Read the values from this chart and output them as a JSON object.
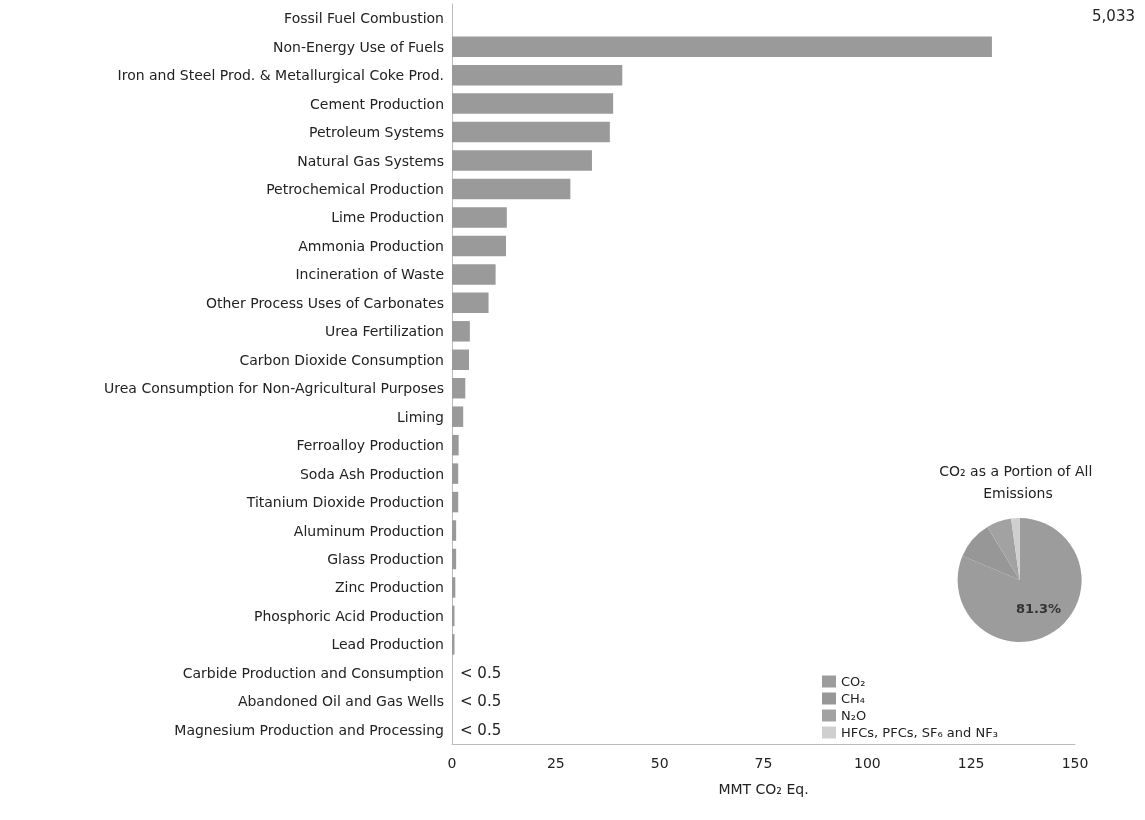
{
  "chart_data": [
    {
      "type": "bar",
      "orientation": "horizontal",
      "xlabel": "MMT CO₂ Eq.",
      "categories": [
        "Fossil Fuel Combustion",
        "Non-Energy Use of Fuels",
        "Iron and Steel Prod. & Metallurgical Coke Prod.",
        "Cement Production",
        "Petroleum Systems",
        "Natural Gas Systems",
        "Petrochemical Production",
        "Lime Production",
        "Ammonia Production",
        "Incineration of Waste",
        "Other Process Uses of Carbonates",
        "Urea Fertilization",
        "Carbon Dioxide Consumption",
        "Urea Consumption for Non-Agricultural Purposes",
        "Liming",
        "Ferroalloy Production",
        "Soda Ash Production",
        "Titanium Dioxide Production",
        "Aluminum Production",
        "Glass Production",
        "Zinc Production",
        "Phosphoric Acid Production",
        "Lead Production",
        "Carbide Production and Consumption",
        "Abandoned Oil and Gas Wells",
        "Magnesium Production and Processing"
      ],
      "annotations": [
        "5,033"
      ],
      "values": [
        null,
        130,
        41,
        38.8,
        38,
        33.7,
        28.5,
        13.2,
        13,
        10.5,
        8.8,
        4.3,
        4.1,
        3.2,
        2.7,
        1.6,
        1.5,
        1.5,
        1,
        1,
        0.8,
        0.6,
        0.6,
        null,
        null,
        null
      ],
      "value_labels": [
        null,
        null,
        null,
        null,
        null,
        null,
        null,
        null,
        null,
        null,
        null,
        null,
        null,
        null,
        null,
        null,
        null,
        null,
        null,
        null,
        null,
        null,
        null,
        "< 0.5",
        "< 0.5",
        "< 0.5"
      ],
      "color": "#9a9a9a",
      "xlim": [
        0,
        150
      ],
      "xticks": [
        0,
        25,
        50,
        75,
        100,
        125,
        150
      ],
      "grid": false,
      "legend": false
    },
    {
      "type": "pie",
      "title": "CO₂ as a Portion of All Emissions",
      "categories": [
        "CO₂",
        "CH₄",
        "N₂O",
        "HFCs, PFCs, SF₆ and NF₃"
      ],
      "values": [
        81.3,
        10,
        6.5,
        2.2
      ],
      "colors": [
        "#9c9c9c",
        "#979797",
        "#a2a2a2",
        "#cfcfcf"
      ],
      "value_labels": [
        "81.3%",
        null,
        null,
        null
      ],
      "legend": "bottom left"
    }
  ]
}
